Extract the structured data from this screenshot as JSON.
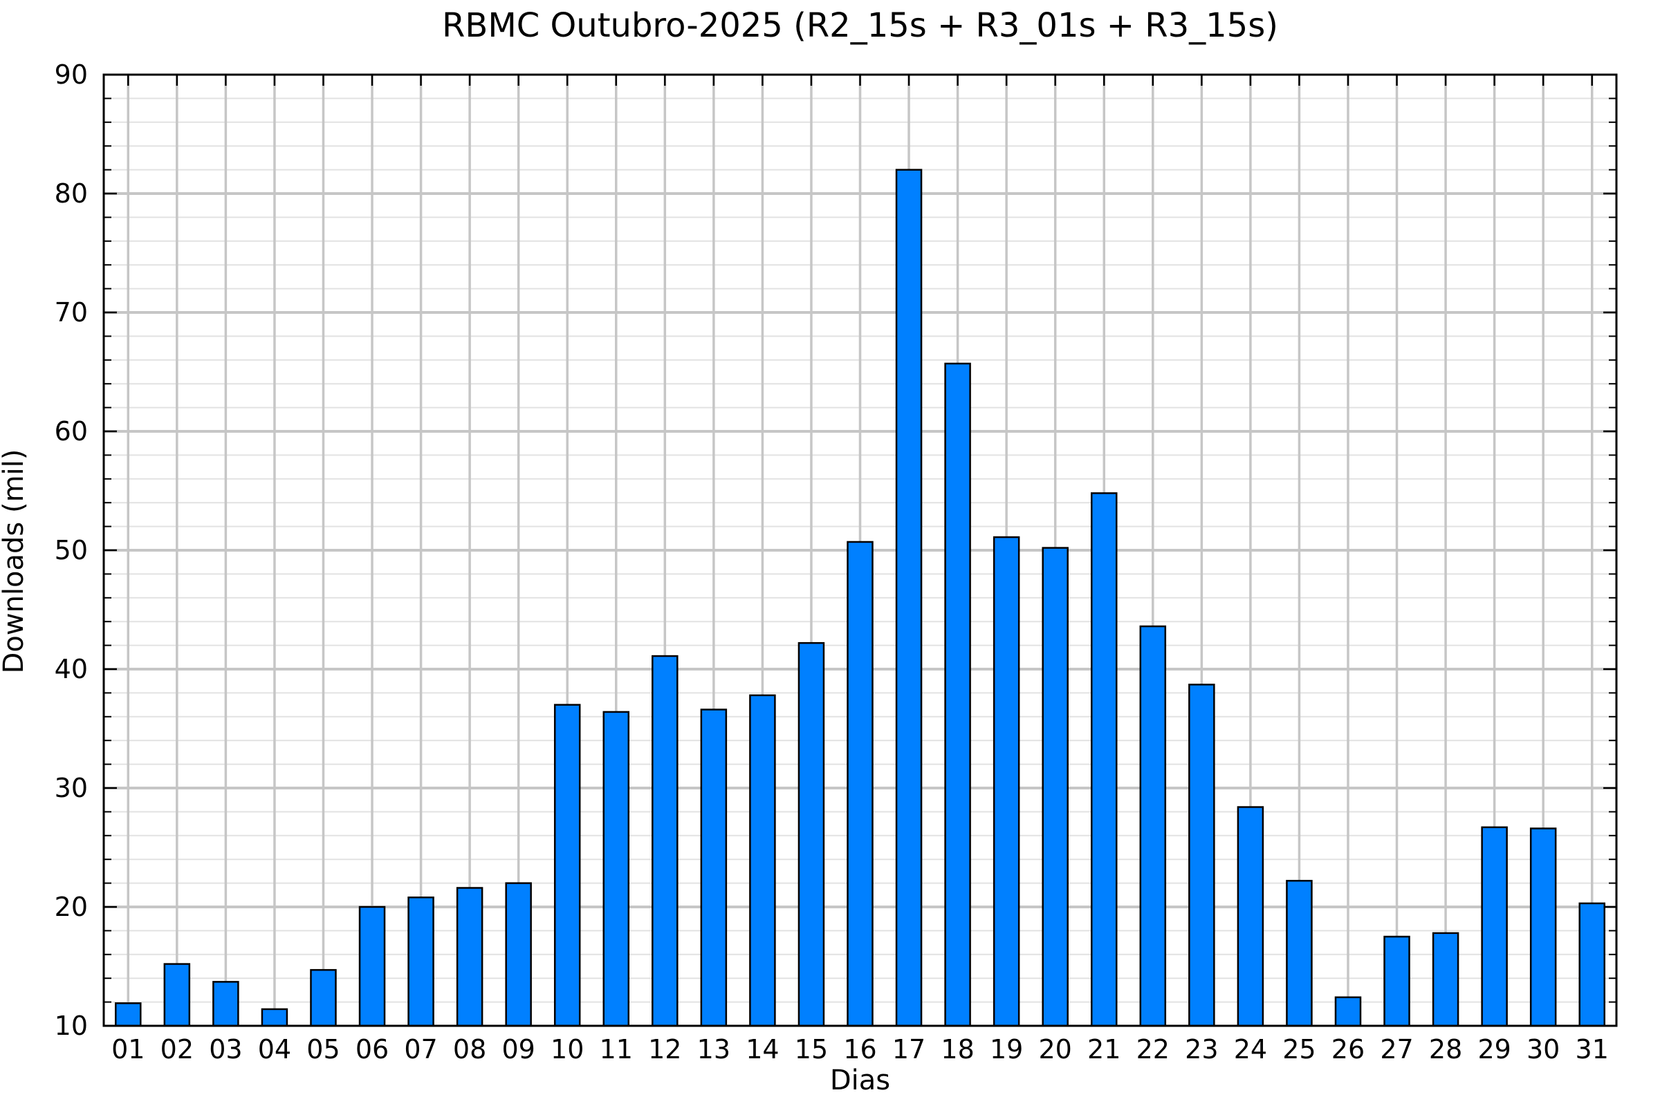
{
  "chart_data": {
    "type": "bar",
    "title": "RBMC Outubro-2025 (R2_15s + R3_01s + R3_15s)",
    "xlabel": "Dias",
    "ylabel": "Downloads (mil)",
    "categories": [
      "01",
      "02",
      "03",
      "04",
      "05",
      "06",
      "07",
      "08",
      "09",
      "10",
      "11",
      "12",
      "13",
      "14",
      "15",
      "16",
      "17",
      "18",
      "19",
      "20",
      "21",
      "22",
      "23",
      "24",
      "25",
      "26",
      "27",
      "28",
      "29",
      "30",
      "31"
    ],
    "values": [
      11.9,
      15.2,
      13.7,
      11.4,
      14.7,
      20.0,
      20.8,
      21.6,
      22.0,
      37.0,
      36.4,
      41.1,
      36.6,
      37.8,
      42.2,
      50.7,
      82.0,
      65.7,
      51.1,
      50.2,
      54.8,
      43.6,
      38.7,
      28.4,
      22.2,
      12.4,
      17.5,
      17.8,
      26.7,
      26.6,
      20.3
    ],
    "ylim": [
      10,
      90
    ],
    "ytick_major_step": 10,
    "ytick_minor_step": 2,
    "yticks_major": [
      10,
      20,
      30,
      40,
      50,
      60,
      70,
      80,
      90
    ],
    "grid_horizontal_major": true,
    "grid_horizontal_minor": true,
    "grid_vertical_per_category": true,
    "legend": "none",
    "bar_fill_color": "#0080FF",
    "bar_edge_color": "#000000",
    "grid_major_color": "#c6c6c6",
    "grid_minor_color": "#e2e2e2",
    "axis_color": "#000000",
    "text_color": "#000000",
    "background_color": "#ffffff"
  }
}
